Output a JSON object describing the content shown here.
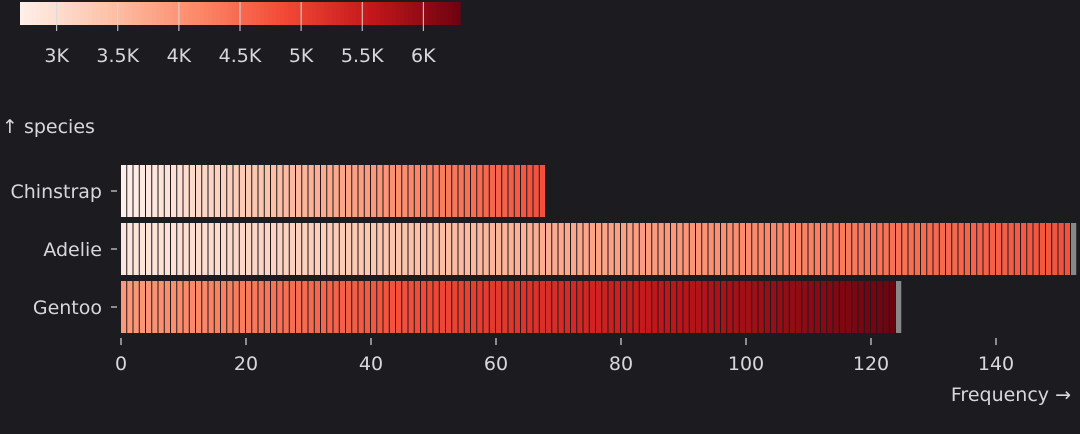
{
  "chart_data": {
    "type": "bar",
    "orientation": "horizontal",
    "mark": "stacked unit bars colored by body mass",
    "xlabel": "Frequency →",
    "ylabel": "↑ species",
    "x_ticks": [
      0,
      20,
      40,
      60,
      80,
      100,
      120,
      140
    ],
    "xlim": [
      0,
      152
    ],
    "categories": [
      "Chinstrap",
      "Adelie",
      "Gentoo"
    ],
    "counts": [
      68,
      152,
      124
    ],
    "missing_counts": [
      0,
      1,
      1
    ],
    "mass_range": {
      "Chinstrap": [
        2700,
        4800
      ],
      "Adelie": [
        2850,
        4775
      ],
      "Gentoo": [
        3950,
        6300
      ]
    },
    "color_legend": {
      "domain": [
        2700,
        6300
      ],
      "ticks": [
        3000,
        3500,
        4000,
        4500,
        5000,
        5500,
        6000
      ],
      "tick_labels": [
        "3K",
        "3.5K",
        "4K",
        "4.5K",
        "5K",
        "5.5K",
        "6K"
      ],
      "scheme": "reds",
      "colors": [
        "#fff0ea",
        "#fcc3aa",
        "#fc8a6a",
        "#f24a36",
        "#c3161b",
        "#6e0310"
      ]
    },
    "missing_color": "#888888",
    "background": "#1c1b20",
    "text_color": "#d8d8dc"
  }
}
